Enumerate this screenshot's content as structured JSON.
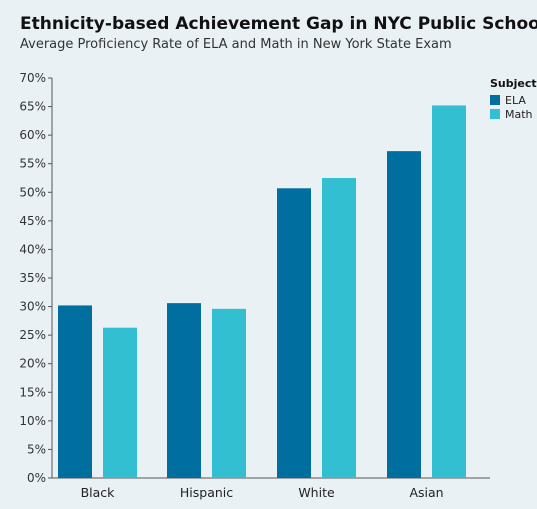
{
  "chart_data": {
    "type": "bar",
    "title": "Ethnicity-based Achievement Gap in NYC Public Schools",
    "subtitle": "Average Proficiency Rate of ELA and Math in New York State Exam",
    "categories": [
      "Black",
      "Hispanic",
      "White",
      "Asian"
    ],
    "series": [
      {
        "name": "ELA",
        "color": "#006fa0",
        "values": [
          30.2,
          30.6,
          50.7,
          57.2
        ]
      },
      {
        "name": "Math",
        "color": "#33bfd2",
        "values": [
          26.3,
          29.6,
          52.5,
          65.2
        ]
      }
    ],
    "ylim": [
      0,
      70
    ],
    "yticks": [
      "0%",
      "5%",
      "10%",
      "15%",
      "20%",
      "25%",
      "30%",
      "35%",
      "40%",
      "45%",
      "50%",
      "55%",
      "60%",
      "65%",
      "70%"
    ],
    "xlabel": "",
    "ylabel": "",
    "legend": {
      "title": "Subject",
      "placement": "top-right"
    },
    "grid": false
  }
}
